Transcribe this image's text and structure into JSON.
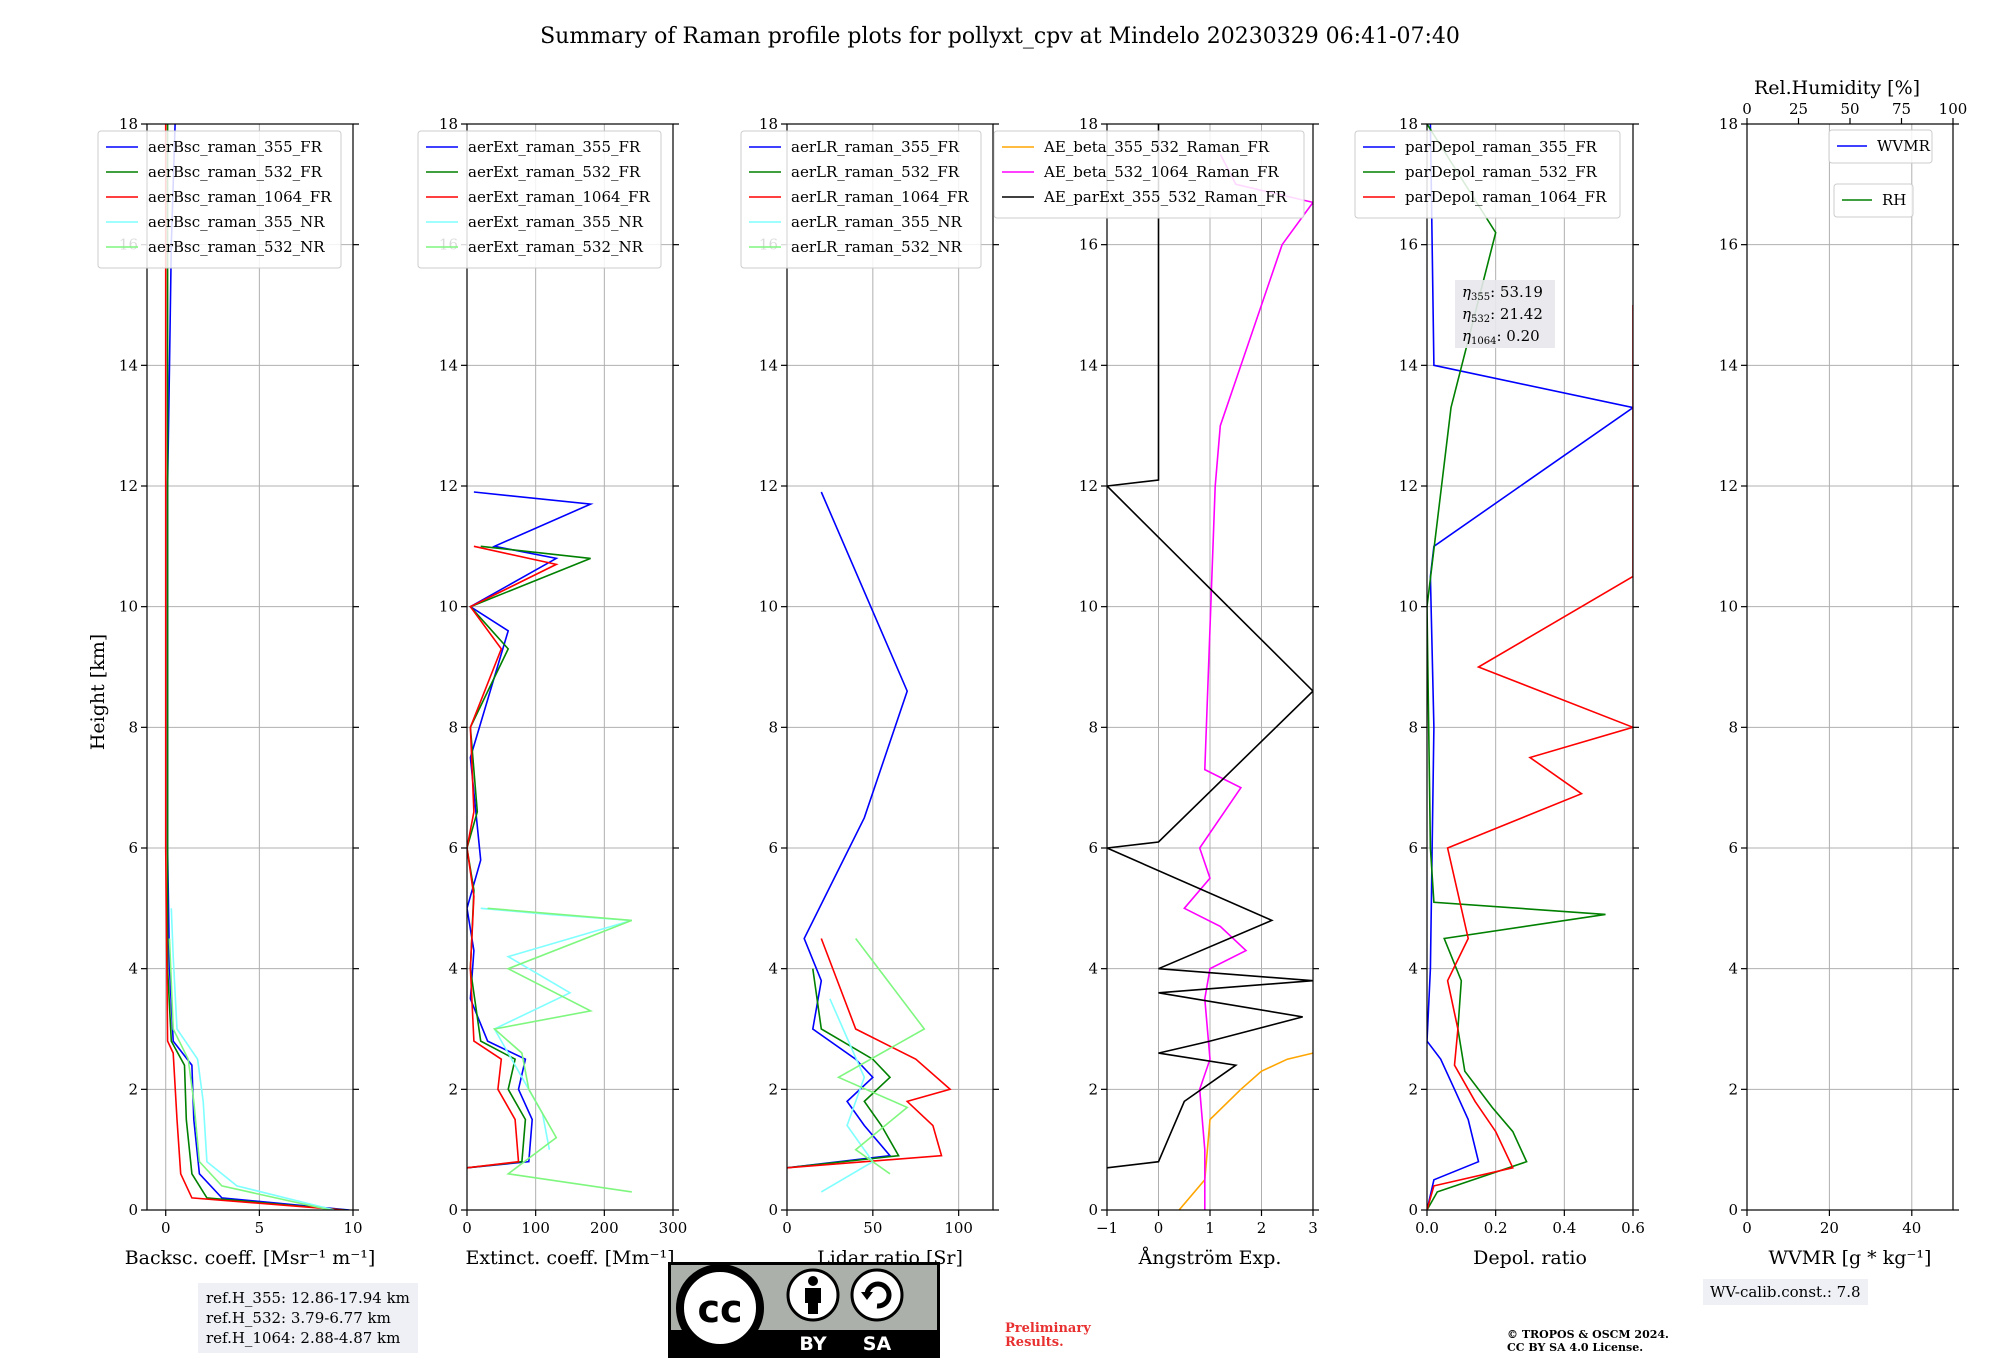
{
  "title": "Summary of Raman profile plots for pollyxt_cpv at Mindelo 20230329 06:41-07:40",
  "ylabel": "Height [km]",
  "y_ticks": [
    "0",
    "2",
    "4",
    "6",
    "8",
    "10",
    "12",
    "14",
    "16",
    "18"
  ],
  "colors": {
    "blue": "#0000ff",
    "green": "#008000",
    "red": "#ff0000",
    "cyan": "#7fffff",
    "lightgreen": "#7ff77f",
    "orange": "#ffa500",
    "magenta": "#ff00ff",
    "black": "#000000",
    "grid": "#b0b0b0"
  },
  "panels": [
    {
      "xlabel": "Backsc. coeff. [Msr⁻¹ m⁻¹]",
      "xticks": [
        "0",
        "5",
        "10"
      ],
      "legend": [
        "aerBsc_raman_355_FR",
        "aerBsc_raman_532_FR",
        "aerBsc_raman_1064_FR",
        "aerBsc_raman_355_NR",
        "aerBsc_raman_532_NR"
      ]
    },
    {
      "xlabel": "Extinct. coeff. [Mm⁻¹]",
      "xticks": [
        "0",
        "100",
        "200",
        "300"
      ],
      "legend": [
        "aerExt_raman_355_FR",
        "aerExt_raman_532_FR",
        "aerExt_raman_1064_FR",
        "aerExt_raman_355_NR",
        "aerExt_raman_532_NR"
      ]
    },
    {
      "xlabel": "Lidar ratio [Sr]",
      "xticks": [
        "0",
        "50",
        "100"
      ],
      "legend": [
        "aerLR_raman_355_FR",
        "aerLR_raman_532_FR",
        "aerLR_raman_1064_FR",
        "aerLR_raman_355_NR",
        "aerLR_raman_532_NR"
      ]
    },
    {
      "xlabel": "Ångström Exp.",
      "xticks": [
        "−1",
        "0",
        "1",
        "2",
        "3"
      ],
      "legend": [
        "AE_beta_355_532_Raman_FR",
        "AE_beta_532_1064_Raman_FR",
        "AE_parExt_355_532_Raman_FR"
      ]
    },
    {
      "xlabel": "Depol. ratio",
      "xticks": [
        "0.0",
        "0.2",
        "0.4",
        "0.6"
      ],
      "legend": [
        "parDepol_raman_355_FR",
        "parDepol_raman_532_FR",
        "parDepol_raman_1064_FR"
      ],
      "eta": [
        "53.19",
        "21.42",
        "0.20"
      ]
    },
    {
      "xlabel": "WVMR [g * kg⁻¹]",
      "xticks": [
        "0",
        "20",
        "40"
      ],
      "top_label": "Rel.Humidity [%]",
      "top_ticks": [
        "0",
        "25",
        "50",
        "75",
        "100"
      ],
      "legend": [
        "WVMR",
        "RH"
      ]
    }
  ],
  "ref_heights": [
    "ref.H_355: 12.86-17.94 km",
    "ref.H_532: 3.79-6.77 km",
    "ref.H_1064: 2.88-4.87 km"
  ],
  "wv_calib": "WV-calib.const.: 7.8",
  "preliminary": [
    "Preliminary",
    "Results."
  ],
  "copyright": [
    "© TROPOS & OSCM 2024.",
    "CC BY SA 4.0 License."
  ],
  "license_badge": [
    "BY",
    "SA"
  ],
  "chart_data": [
    {
      "type": "line",
      "xlabel": "Backsc. coeff. [Msr⁻¹ m⁻¹]",
      "ylabel": "Height [km]",
      "xlim": [
        -1,
        10
      ],
      "ylim": [
        0,
        18
      ],
      "grid": true,
      "legend_position": "upper left",
      "series": [
        {
          "name": "aerBsc_raman_355_FR",
          "x": [
            9.8,
            3.0,
            1.8,
            1.5,
            1.4,
            0.4,
            0.2,
            0.1,
            0.1,
            0.1,
            0.2,
            0.3,
            0.5
          ],
          "y": [
            0,
            0.2,
            0.6,
            1.5,
            2.4,
            2.8,
            4,
            6,
            10,
            12,
            14,
            16,
            18
          ]
        },
        {
          "name": "aerBsc_raman_532_FR",
          "x": [
            9.6,
            2.2,
            1.4,
            1.1,
            1.0,
            0.3,
            0.1,
            0.1,
            0.1,
            0.1,
            0.1
          ],
          "y": [
            0,
            0.2,
            0.6,
            1.5,
            2.4,
            2.8,
            4,
            8,
            12,
            16,
            18
          ]
        },
        {
          "name": "aerBsc_raman_1064_FR",
          "x": [
            9.5,
            1.4,
            0.8,
            0.6,
            0.4,
            0.1,
            0.0,
            0.0,
            0.0
          ],
          "y": [
            0,
            0.2,
            0.6,
            1.5,
            2.6,
            2.8,
            6,
            12,
            18
          ]
        },
        {
          "name": "aerBsc_raman_355_NR",
          "x": [
            9.0,
            3.8,
            2.2,
            2.0,
            1.7,
            0.6,
            0.4,
            0.3
          ],
          "y": [
            0,
            0.4,
            0.8,
            1.8,
            2.5,
            3.0,
            4.2,
            5.0
          ]
        },
        {
          "name": "aerBsc_raman_532_NR",
          "x": [
            8.8,
            3.0,
            1.8,
            1.5,
            1.2,
            0.4,
            0.2
          ],
          "y": [
            0,
            0.4,
            0.8,
            1.8,
            2.5,
            3.0,
            4.5
          ]
        }
      ]
    },
    {
      "type": "line",
      "xlabel": "Extinct. coeff. [Mm⁻¹]",
      "ylabel": "Height [km]",
      "xlim": [
        0,
        300
      ],
      "ylim": [
        0,
        18
      ],
      "grid": true,
      "legend_position": "upper left",
      "series": [
        {
          "name": "aerExt_raman_355_FR",
          "x": [
            0,
            90,
            95,
            75,
            85,
            30,
            5,
            10,
            0,
            20,
            5,
            60,
            5,
            130,
            40,
            180,
            10
          ],
          "y": [
            0.7,
            0.8,
            1.5,
            2.0,
            2.5,
            2.8,
            3.5,
            4.3,
            5.0,
            5.8,
            7.5,
            9.6,
            10.0,
            10.8,
            11.0,
            11.7,
            11.9
          ]
        },
        {
          "name": "aerExt_raman_532_FR",
          "x": [
            0,
            80,
            85,
            60,
            70,
            20,
            5,
            10,
            0,
            15,
            5,
            60,
            5,
            180,
            20
          ],
          "y": [
            0.7,
            0.8,
            1.5,
            2.0,
            2.5,
            2.8,
            4.0,
            5.3,
            6.0,
            6.6,
            8.0,
            9.3,
            10.0,
            10.8,
            11.0
          ]
        },
        {
          "name": "aerExt_raman_1064_FR",
          "x": [
            0,
            75,
            70,
            45,
            50,
            10,
            5,
            10,
            0,
            10,
            5,
            50,
            5,
            130,
            10
          ],
          "y": [
            0.7,
            0.8,
            1.5,
            2.0,
            2.5,
            2.8,
            4.0,
            5.2,
            6.0,
            6.6,
            8.0,
            9.3,
            10.0,
            10.7,
            11.0
          ]
        },
        {
          "name": "aerExt_raman_355_NR",
          "x": [
            120,
            110,
            80,
            40,
            150,
            60,
            240,
            120,
            20
          ],
          "y": [
            1.0,
            1.6,
            2.2,
            3.0,
            3.6,
            4.2,
            4.8,
            4.9,
            5.0
          ]
        },
        {
          "name": "aerExt_raman_532_NR",
          "x": [
            240,
            60,
            130,
            90,
            80,
            40,
            180,
            60,
            240,
            30
          ],
          "y": [
            0.3,
            0.6,
            1.2,
            2.0,
            2.6,
            3.0,
            3.3,
            4.0,
            4.8,
            5.0
          ]
        }
      ]
    },
    {
      "type": "line",
      "xlabel": "Lidar ratio [Sr]",
      "ylabel": "Height [km]",
      "xlim": [
        0,
        120
      ],
      "ylim": [
        0,
        18
      ],
      "grid": true,
      "legend_position": "upper left",
      "series": [
        {
          "name": "aerLR_raman_355_FR",
          "x": [
            0,
            60,
            45,
            35,
            50,
            40,
            15,
            20,
            10,
            45,
            70,
            20
          ],
          "y": [
            0.7,
            0.9,
            1.4,
            1.8,
            2.2,
            2.5,
            3.0,
            3.8,
            4.5,
            6.5,
            8.6,
            11.9
          ]
        },
        {
          "name": "aerLR_raman_532_FR",
          "x": [
            0,
            65,
            55,
            45,
            60,
            50,
            20,
            15
          ],
          "y": [
            0.7,
            0.9,
            1.4,
            1.8,
            2.2,
            2.5,
            3.0,
            4.0
          ]
        },
        {
          "name": "aerLR_raman_1064_FR",
          "x": [
            0,
            90,
            85,
            70,
            95,
            75,
            40,
            20
          ],
          "y": [
            0.7,
            0.9,
            1.4,
            1.8,
            2.0,
            2.5,
            3.0,
            4.5
          ]
        },
        {
          "name": "aerLR_raman_355_NR",
          "x": [
            20,
            50,
            35,
            45,
            25
          ],
          "y": [
            0.3,
            0.8,
            1.4,
            2.2,
            3.5
          ]
        },
        {
          "name": "aerLR_raman_532_NR",
          "x": [
            60,
            40,
            70,
            30,
            80,
            40
          ],
          "y": [
            0.6,
            1.0,
            1.7,
            2.2,
            3.0,
            4.5
          ]
        }
      ]
    },
    {
      "type": "line",
      "xlabel": "Ångström Exp.",
      "ylabel": "Height [km]",
      "xlim": [
        -1,
        3
      ],
      "ylim": [
        0,
        18
      ],
      "grid": true,
      "legend_position": "upper center",
      "series": [
        {
          "name": "AE_beta_355_532_Raman_FR",
          "x": [
            0.4,
            0.6,
            0.9,
            1.0,
            1.6,
            2.0,
            2.5,
            3.0
          ],
          "y": [
            0,
            0.2,
            0.5,
            1.5,
            2.0,
            2.3,
            2.5,
            2.6
          ]
        },
        {
          "name": "AE_beta_532_1064_Raman_FR",
          "x": [
            0.9,
            0.9,
            0.8,
            1.0,
            0.9,
            1.0,
            1.7,
            1.2,
            0.5,
            1.0,
            0.8,
            1.6,
            0.9,
            1.1,
            1.2,
            2.4,
            3.0,
            1.5,
            1.2
          ],
          "y": [
            0,
            1.0,
            2.0,
            2.5,
            3.5,
            4.0,
            4.3,
            4.7,
            5.0,
            5.5,
            6.0,
            7.0,
            7.3,
            12.0,
            13.0,
            16.0,
            16.7,
            17.0,
            17.5
          ]
        },
        {
          "name": "AE_parExt_355_532_Raman_FR",
          "x": [
            -1,
            0,
            0.2,
            0.5,
            1.5,
            0,
            1.0,
            2.8,
            0,
            3.0,
            0,
            2.2,
            -1,
            0,
            3.0,
            -1,
            0,
            0,
            0
          ],
          "y": [
            0.7,
            0.8,
            1.2,
            1.8,
            2.4,
            2.6,
            2.8,
            3.2,
            3.6,
            3.8,
            4.0,
            4.8,
            6.0,
            6.1,
            8.6,
            12.0,
            12.1,
            15.0,
            18.0
          ]
        }
      ]
    },
    {
      "type": "line",
      "xlabel": "Depol. ratio",
      "ylabel": "Height [km]",
      "xlim": [
        0,
        0.6
      ],
      "ylim": [
        0,
        18
      ],
      "grid": true,
      "legend_position": "upper left",
      "series": [
        {
          "name": "parDepol_raman_355_FR",
          "x": [
            0,
            0.02,
            0.15,
            0.12,
            0.08,
            0.04,
            0.0,
            0.01,
            0.02,
            0.01,
            0.02,
            0.6,
            0.02,
            0.01
          ],
          "y": [
            0,
            0.5,
            0.8,
            1.5,
            2.0,
            2.5,
            2.8,
            4.0,
            8.0,
            10.5,
            11.0,
            13.3,
            14.0,
            18.0
          ]
        },
        {
          "name": "parDepol_raman_532_FR",
          "x": [
            0,
            0.03,
            0.29,
            0.25,
            0.19,
            0.11,
            0.09,
            0.1,
            0.05,
            0.52,
            0.02,
            0.01,
            0.0,
            0.07,
            0.2,
            0.0
          ],
          "y": [
            0,
            0.3,
            0.8,
            1.3,
            1.7,
            2.3,
            3.0,
            3.8,
            4.5,
            4.9,
            5.1,
            6.0,
            10.0,
            13.3,
            16.2,
            18.0
          ]
        },
        {
          "name": "parDepol_raman_1064_FR",
          "x": [
            0,
            0.02,
            0.25,
            0.2,
            0.14,
            0.08,
            0.09,
            0.06,
            0.12,
            0.06,
            0.45,
            0.3,
            0.6,
            0.15,
            0.6,
            0.6
          ],
          "y": [
            0,
            0.4,
            0.7,
            1.3,
            1.8,
            2.4,
            3.0,
            3.8,
            4.5,
            6.0,
            6.9,
            7.5,
            8.0,
            9.0,
            10.5,
            15.0
          ]
        }
      ]
    },
    {
      "type": "line",
      "xlabel": "WVMR [g * kg⁻¹]",
      "ylabel": "Height [km]",
      "xlim": [
        0,
        50
      ],
      "ylim": [
        0,
        18
      ],
      "grid": true,
      "top_axis": {
        "label": "Rel.Humidity [%]",
        "lim": [
          0,
          100
        ]
      },
      "legend_position": "upper right",
      "series": [
        {
          "name": "WVMR",
          "x": [],
          "y": []
        },
        {
          "name": "RH",
          "x": [],
          "y": []
        }
      ]
    }
  ]
}
